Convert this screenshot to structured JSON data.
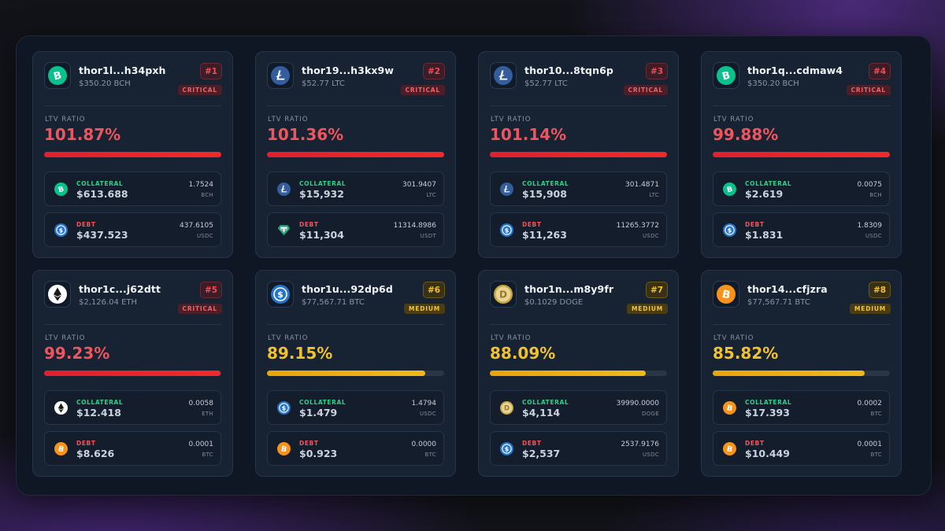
{
  "colors": {
    "critical": "#f0555d",
    "medium": "#f2c12e",
    "collateral_label": "#2fd08a",
    "debt_label": "#f0555d"
  },
  "cards": [
    {
      "address": "thor1l...h34pxh",
      "price": "$350.20 BCH",
      "rank": "#1",
      "severity": "CRITICAL",
      "ltv_label": "LTV RATIO",
      "ltv": "101.87%",
      "ltv_fill_percent": 100,
      "collateral": {
        "label": "COLLATERAL",
        "icon": "bch-icon",
        "value": "$613.688",
        "amount": "1.7524",
        "unit": "BCH"
      },
      "debt": {
        "label": "DEBT",
        "icon": "usdc-icon",
        "value": "$437.523",
        "amount": "437.6105",
        "unit": "USDC"
      }
    },
    {
      "address": "thor19...h3kx9w",
      "price": "$52.77 LTC",
      "rank": "#2",
      "severity": "CRITICAL",
      "ltv_label": "LTV RATIO",
      "ltv": "101.36%",
      "ltv_fill_percent": 100,
      "collateral": {
        "label": "COLLATERAL",
        "icon": "ltc-icon",
        "value": "$15,932",
        "amount": "301.9407",
        "unit": "LTC"
      },
      "debt": {
        "label": "DEBT",
        "icon": "usdt-icon",
        "value": "$11,304",
        "amount": "11314.8986",
        "unit": "USDT"
      }
    },
    {
      "address": "thor10...8tqn6p",
      "price": "$52.77 LTC",
      "rank": "#3",
      "severity": "CRITICAL",
      "ltv_label": "LTV RATIO",
      "ltv": "101.14%",
      "ltv_fill_percent": 100,
      "collateral": {
        "label": "COLLATERAL",
        "icon": "ltc-icon",
        "value": "$15,908",
        "amount": "301.4871",
        "unit": "LTC"
      },
      "debt": {
        "label": "DEBT",
        "icon": "usdc-icon",
        "value": "$11,263",
        "amount": "11265.3772",
        "unit": "USDC"
      }
    },
    {
      "address": "thor1q...cdmaw4",
      "price": "$350.20 BCH",
      "rank": "#4",
      "severity": "CRITICAL",
      "ltv_label": "LTV RATIO",
      "ltv": "99.88%",
      "ltv_fill_percent": 100,
      "collateral": {
        "label": "COLLATERAL",
        "icon": "bch-icon",
        "value": "$2.619",
        "amount": "0.0075",
        "unit": "BCH"
      },
      "debt": {
        "label": "DEBT",
        "icon": "usdc-icon",
        "value": "$1.831",
        "amount": "1.8309",
        "unit": "USDC"
      }
    },
    {
      "address": "thor1c...j62dtt",
      "price": "$2,126.04 ETH",
      "rank": "#5",
      "severity": "CRITICAL",
      "ltv_label": "LTV RATIO",
      "ltv": "99.23%",
      "ltv_fill_percent": 99.5,
      "collateral": {
        "label": "COLLATERAL",
        "icon": "eth-icon",
        "value": "$12.418",
        "amount": "0.0058",
        "unit": "ETH"
      },
      "debt": {
        "label": "DEBT",
        "icon": "btc-icon",
        "value": "$8.626",
        "amount": "0.0001",
        "unit": "BTC"
      }
    },
    {
      "address": "thor1u...92dp6d",
      "price": "$77,567.71 BTC",
      "rank": "#6",
      "severity": "MEDIUM",
      "ltv_label": "LTV RATIO",
      "ltv": "89.15%",
      "ltv_fill_percent": 89.15,
      "collateral": {
        "label": "COLLATERAL",
        "icon": "usdc-icon",
        "value": "$1.479",
        "amount": "1.4794",
        "unit": "USDC"
      },
      "debt": {
        "label": "DEBT",
        "icon": "btc-icon",
        "value": "$0.923",
        "amount": "0.0000",
        "unit": "BTC"
      }
    },
    {
      "address": "thor1n...m8y9fr",
      "price": "$0.1029 DOGE",
      "rank": "#7",
      "severity": "MEDIUM",
      "ltv_label": "LTV RATIO",
      "ltv": "88.09%",
      "ltv_fill_percent": 88.09,
      "collateral": {
        "label": "COLLATERAL",
        "icon": "doge-icon",
        "value": "$4,114",
        "amount": "39990.0000",
        "unit": "DOGE"
      },
      "debt": {
        "label": "DEBT",
        "icon": "usdc-icon",
        "value": "$2,537",
        "amount": "2537.9176",
        "unit": "USDC"
      }
    },
    {
      "address": "thor14...cfjzra",
      "price": "$77,567.71 BTC",
      "rank": "#8",
      "severity": "MEDIUM",
      "ltv_label": "LTV RATIO",
      "ltv": "85.82%",
      "ltv_fill_percent": 85.82,
      "collateral": {
        "label": "COLLATERAL",
        "icon": "btc-icon",
        "value": "$17.393",
        "amount": "0.0002",
        "unit": "BTC"
      },
      "debt": {
        "label": "DEBT",
        "icon": "btc-icon",
        "value": "$10.449",
        "amount": "0.0001",
        "unit": "BTC"
      }
    }
  ]
}
